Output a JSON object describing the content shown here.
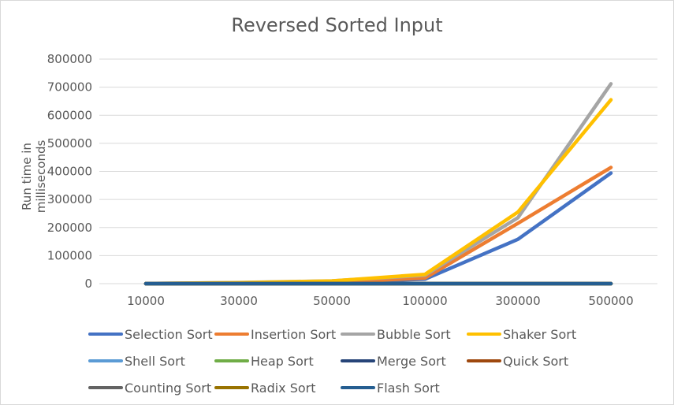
{
  "chart_data": {
    "type": "line",
    "title": "Reversed Sorted Input",
    "xlabel": "",
    "ylabel": "Run time in milliseconds",
    "categories": [
      "10000",
      "30000",
      "50000",
      "100000",
      "300000",
      "500000"
    ],
    "ylim": [
      0,
      800000
    ],
    "yticks": [
      "0",
      "100000",
      "200000",
      "300000",
      "400000",
      "500000",
      "600000",
      "700000",
      "800000"
    ],
    "grid": true,
    "legend_position": "bottom",
    "series": [
      {
        "name": "Selection Sort",
        "color": "#4472c4",
        "values": [
          150,
          1400,
          4000,
          16000,
          158000,
          394000
        ]
      },
      {
        "name": "Insertion Sort",
        "color": "#ed7d31",
        "values": [
          200,
          1900,
          5500,
          20000,
          215000,
          414000
        ]
      },
      {
        "name": "Bubble Sort",
        "color": "#a5a5a5",
        "values": [
          400,
          3700,
          10000,
          30000,
          235000,
          712000
        ]
      },
      {
        "name": "Shaker Sort",
        "color": "#ffc000",
        "values": [
          350,
          3200,
          9500,
          33000,
          255000,
          655000
        ]
      },
      {
        "name": "Shell Sort",
        "color": "#5b9bd5",
        "values": [
          1,
          3,
          5,
          10,
          35,
          60
        ]
      },
      {
        "name": "Heap Sort",
        "color": "#70ad47",
        "values": [
          2,
          6,
          10,
          22,
          70,
          120
        ]
      },
      {
        "name": "Merge Sort",
        "color": "#264478",
        "values": [
          2,
          6,
          10,
          20,
          60,
          100
        ]
      },
      {
        "name": "Quick Sort",
        "color": "#9e480e",
        "values": [
          1,
          2,
          3,
          6,
          20,
          35
        ]
      },
      {
        "name": "Counting Sort",
        "color": "#636363",
        "values": [
          0,
          1,
          1,
          2,
          5,
          8
        ]
      },
      {
        "name": "Radix Sort",
        "color": "#997300",
        "values": [
          1,
          3,
          5,
          10,
          30,
          50
        ]
      },
      {
        "name": "Flash Sort",
        "color": "#255e91",
        "values": [
          0,
          1,
          1,
          2,
          6,
          10
        ]
      }
    ]
  }
}
